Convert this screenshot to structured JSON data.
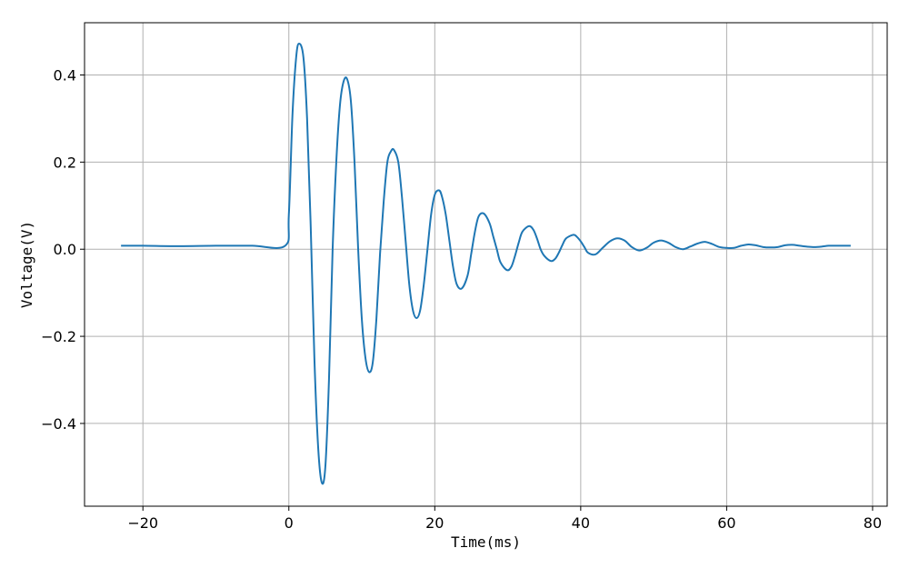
{
  "chart_data": {
    "type": "line",
    "title": "",
    "xlabel": "Time(ms)",
    "ylabel": "Voltage(V)",
    "xlim": [
      -28,
      82
    ],
    "ylim": [
      -0.59,
      0.52
    ],
    "xticks": [
      -20,
      0,
      20,
      40,
      60,
      80
    ],
    "xtick_labels": [
      "−20",
      "0",
      "20",
      "40",
      "60",
      "80"
    ],
    "yticks": [
      -0.4,
      -0.2,
      0.0,
      0.2,
      0.4
    ],
    "ytick_labels": [
      "−0.4",
      "−0.2",
      "0.0",
      "0.2",
      "0.4"
    ],
    "grid": true,
    "legend": "none",
    "series": [
      {
        "color": "#1f77b4",
        "x": [
          -23.0,
          -20.0,
          -15.0,
          -10.0,
          -5.0,
          -0.5,
          0.0,
          0.5,
          1.0,
          1.4,
          2.0,
          2.5,
          3.0,
          3.5,
          4.0,
          4.5,
          5.0,
          5.5,
          6.0,
          6.5,
          7.0,
          7.5,
          8.0,
          8.5,
          9.0,
          9.5,
          10.0,
          10.5,
          11.0,
          11.5,
          12.0,
          12.5,
          13.0,
          13.5,
          14.0,
          14.4,
          15.0,
          15.5,
          16.0,
          16.5,
          17.0,
          17.5,
          18.0,
          18.5,
          19.0,
          19.5,
          20.0,
          20.6,
          21.0,
          21.5,
          22.0,
          22.5,
          23.0,
          23.7,
          24.5,
          25.0,
          25.5,
          26.0,
          26.7,
          27.5,
          28.0,
          28.5,
          29.0,
          29.9,
          30.5,
          31.0,
          31.5,
          32.0,
          32.9,
          33.5,
          34.0,
          34.5,
          35.0,
          35.9,
          36.5,
          37.0,
          37.5,
          38.0,
          39.0,
          39.5,
          40.0,
          40.5,
          41.0,
          42.0,
          43.0,
          44.0,
          45.0,
          46.0,
          47.0,
          48.0,
          49.0,
          50.0,
          51.0,
          52.0,
          53.0,
          54.0,
          55.0,
          56.0,
          57.0,
          58.0,
          59.0,
          60.0,
          61.0,
          62.0,
          63.0,
          64.0,
          65.0,
          66.0,
          67.0,
          68.0,
          69.0,
          70.0,
          71.0,
          72.0,
          73.0,
          74.0,
          75.0,
          76.0,
          77.0
        ],
        "y": [
          0.008,
          0.008,
          0.007,
          0.008,
          0.008,
          0.008,
          0.08,
          0.31,
          0.44,
          0.472,
          0.44,
          0.3,
          0.05,
          -0.25,
          -0.45,
          -0.535,
          -0.5,
          -0.3,
          0.0,
          0.2,
          0.33,
          0.385,
          0.39,
          0.34,
          0.2,
          0.0,
          -0.16,
          -0.25,
          -0.282,
          -0.26,
          -0.16,
          -0.01,
          0.11,
          0.2,
          0.225,
          0.228,
          0.2,
          0.12,
          0.02,
          -0.08,
          -0.14,
          -0.158,
          -0.14,
          -0.08,
          0.0,
          0.08,
          0.125,
          0.135,
          0.12,
          0.08,
          0.02,
          -0.04,
          -0.08,
          -0.09,
          -0.06,
          -0.01,
          0.04,
          0.075,
          0.082,
          0.06,
          0.03,
          0.0,
          -0.03,
          -0.048,
          -0.04,
          -0.015,
          0.015,
          0.04,
          0.053,
          0.045,
          0.025,
          0.0,
          -0.015,
          -0.027,
          -0.022,
          -0.008,
          0.01,
          0.025,
          0.033,
          0.028,
          0.018,
          0.005,
          -0.008,
          -0.012,
          0.003,
          0.018,
          0.025,
          0.02,
          0.005,
          -0.003,
          0.003,
          0.015,
          0.02,
          0.015,
          0.005,
          0.0,
          0.006,
          0.013,
          0.017,
          0.012,
          0.005,
          0.003,
          0.003,
          0.008,
          0.011,
          0.009,
          0.005,
          0.004,
          0.005,
          0.009,
          0.01,
          0.008,
          0.006,
          0.005,
          0.006,
          0.008,
          0.008,
          0.008,
          0.008
        ]
      }
    ]
  }
}
